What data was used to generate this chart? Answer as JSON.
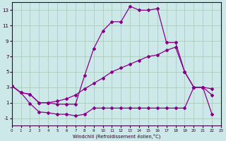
{
  "xlabel": "Windchill (Refroidissement éolien,°C)",
  "background_color": "#cce8e8",
  "grid_color": "#aaccbb",
  "line_color": "#880088",
  "xlim": [
    0,
    23
  ],
  "ylim": [
    -2,
    14
  ],
  "xticks": [
    0,
    1,
    2,
    3,
    4,
    5,
    6,
    7,
    8,
    9,
    10,
    11,
    12,
    13,
    14,
    15,
    16,
    17,
    18,
    19,
    20,
    21,
    22,
    23
  ],
  "yticks": [
    -1,
    1,
    3,
    5,
    7,
    9,
    11,
    13
  ],
  "curve1_x": [
    0,
    1,
    2,
    3,
    4,
    5,
    6,
    7,
    8,
    9,
    10,
    11,
    12,
    13,
    14,
    15,
    16,
    17,
    18,
    19,
    20,
    21,
    22
  ],
  "curve1_y": [
    3.2,
    2.3,
    2.1,
    1.0,
    1.0,
    0.8,
    0.8,
    0.8,
    4.5,
    8.0,
    10.3,
    11.5,
    11.5,
    13.5,
    13.0,
    13.0,
    13.2,
    8.8,
    8.8,
    5.0,
    3.0,
    3.0,
    2.0
  ],
  "curve2_x": [
    0,
    1,
    2,
    3,
    4,
    5,
    6,
    7,
    8,
    9,
    10,
    11,
    12,
    13,
    14,
    15,
    16,
    17,
    18,
    19,
    20,
    21,
    22
  ],
  "curve2_y": [
    3.2,
    2.3,
    2.1,
    1.0,
    1.0,
    1.2,
    1.5,
    2.0,
    2.8,
    3.5,
    4.2,
    5.0,
    5.5,
    6.0,
    6.5,
    7.0,
    7.2,
    7.8,
    8.2,
    5.0,
    3.0,
    3.0,
    2.8
  ],
  "curve3_x": [
    0,
    1,
    2,
    3,
    4,
    5,
    6,
    7,
    8,
    9,
    10,
    11,
    12,
    13,
    14,
    15,
    16,
    17,
    18,
    19,
    20,
    21,
    22
  ],
  "curve3_y": [
    3.2,
    2.3,
    0.9,
    -0.2,
    -0.3,
    -0.5,
    -0.5,
    -0.7,
    -0.5,
    0.3,
    0.3,
    0.3,
    0.3,
    0.3,
    0.3,
    0.3,
    0.3,
    0.3,
    0.3,
    0.3,
    3.0,
    3.0,
    -0.5
  ]
}
